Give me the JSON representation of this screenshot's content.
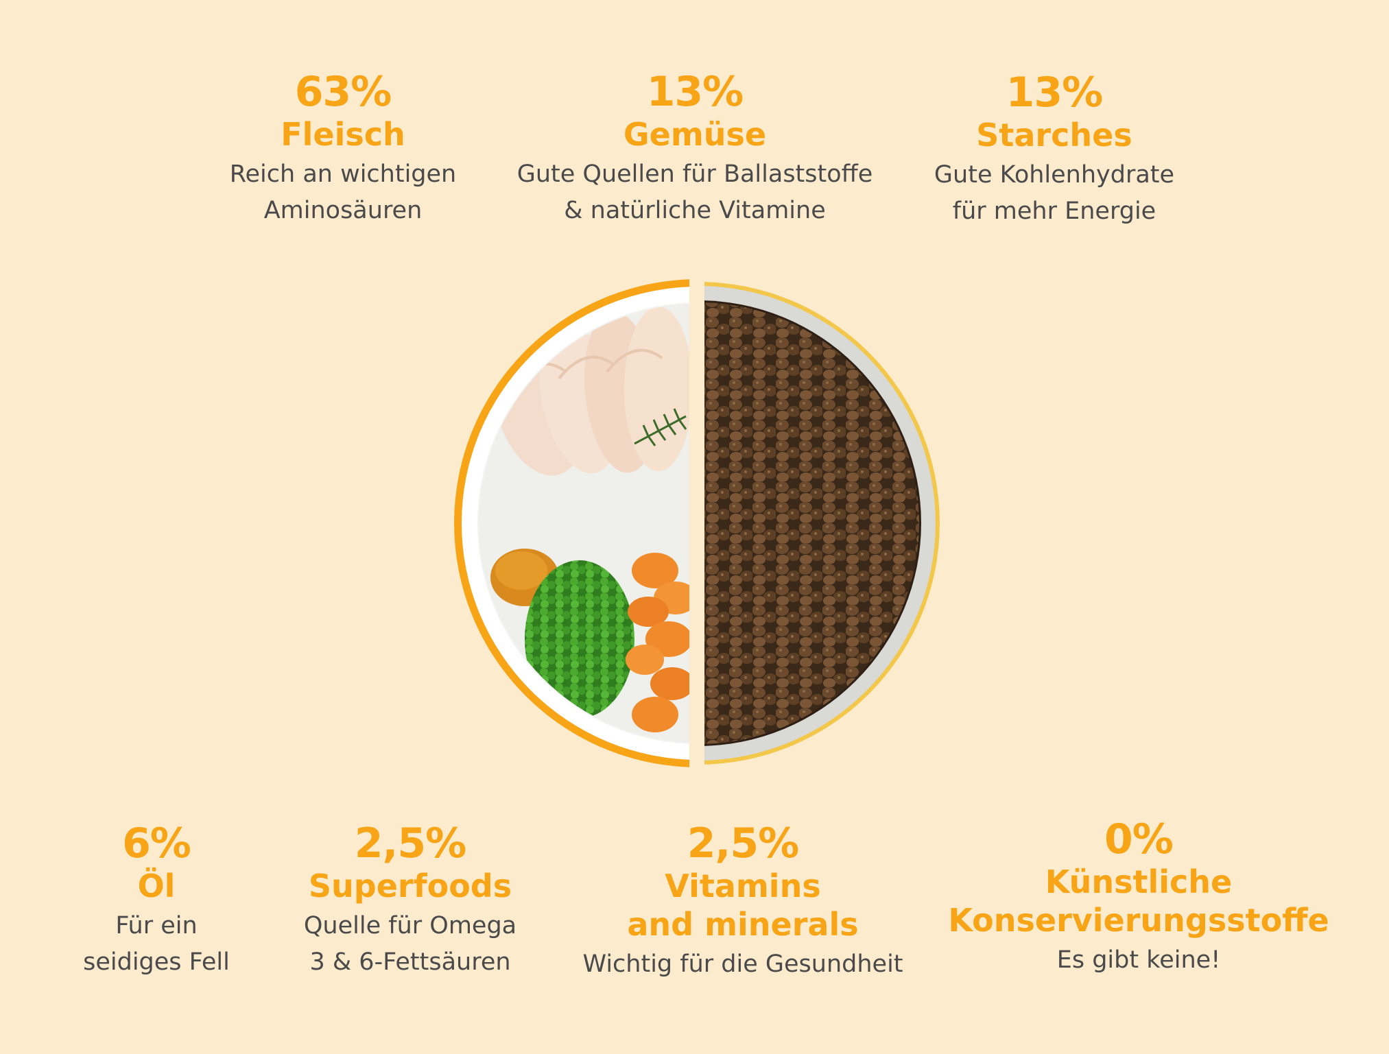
{
  "top": [
    {
      "percent": "63%",
      "title": "Fleisch",
      "lines": [
        "Reich an wichtigen",
        "Aminosäuren"
      ]
    },
    {
      "percent": "13%",
      "title": "Gemüse",
      "lines": [
        "Gute Quellen für Ballaststoffe",
        "& natürliche Vitamine"
      ]
    },
    {
      "percent": "13%",
      "title": "Starches",
      "lines": [
        "Gute Kohlenhydrate",
        "für mehr Energie"
      ]
    }
  ],
  "bottom": [
    {
      "percent": "6%",
      "title": "Öl",
      "lines": [
        "Für ein",
        "seidiges Fell"
      ]
    },
    {
      "percent": "2,5%",
      "title": "Superfoods",
      "lines": [
        "Quelle für Omega",
        "3 & 6-Fettsäuren"
      ]
    },
    {
      "percent": "2,5%",
      "title_lines": [
        "Vitamins",
        "and minerals"
      ],
      "lines": [
        "Wichtig für die Gesundheit"
      ]
    },
    {
      "percent": "0%",
      "title_lines": [
        "Künstliche",
        "Konservierungsstoffe"
      ],
      "lines": [
        "Es gibt keine!"
      ]
    }
  ],
  "colors": {
    "background": "#fdebce",
    "accent": "#f7a516",
    "text": "#4a4a4a"
  },
  "image": {
    "left_half": "fresh-ingredients-bowl",
    "right_half": "dry-kibble-bowl"
  }
}
